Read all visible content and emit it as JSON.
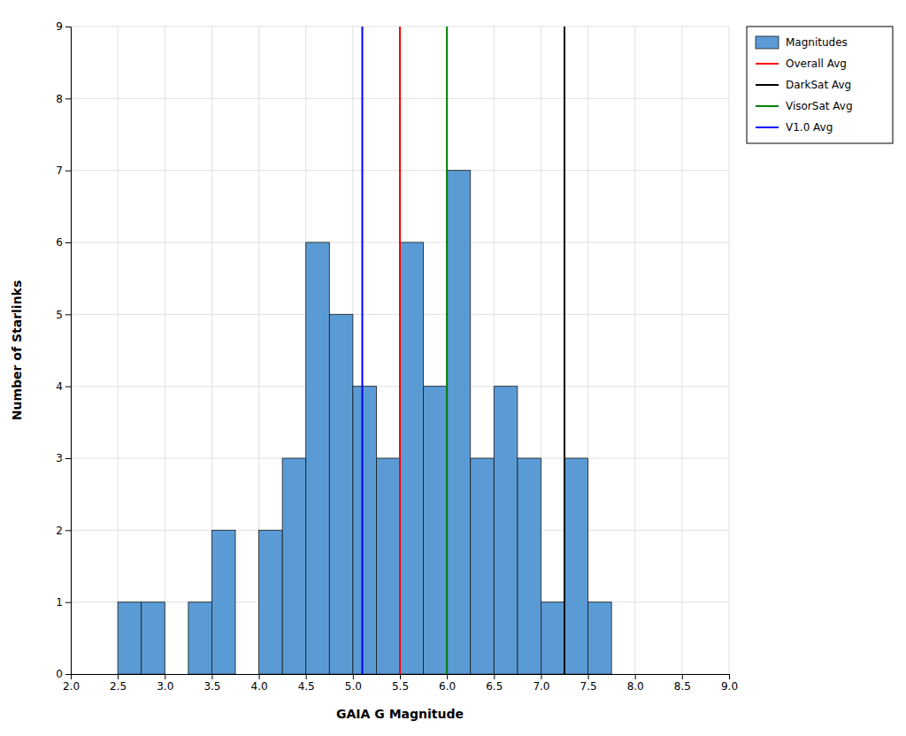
{
  "chart_data": {
    "type": "histogram",
    "xlabel": "GAIA G Magnitude",
    "ylabel": "Number of Starlinks",
    "xlim": [
      2.0,
      9.0
    ],
    "ylim": [
      0,
      9
    ],
    "xticks": [
      {
        "value": 2.0,
        "label": "2.0"
      },
      2.5,
      {
        "value": 3.0,
        "label": "3.0"
      },
      3.5,
      {
        "value": 4.0,
        "label": "4.0"
      },
      4.5,
      {
        "value": 5.0,
        "label": "5.0"
      },
      5.5,
      {
        "value": 6.0,
        "label": "6.0"
      },
      6.5,
      {
        "value": 7.0,
        "label": "7.0"
      },
      7.5,
      {
        "value": 8.0,
        "label": "8.0"
      },
      8.5,
      {
        "value": 9.0,
        "label": "9.0"
      }
    ],
    "yticks": [
      0,
      1,
      2,
      3,
      4,
      5,
      6,
      7,
      8,
      9
    ],
    "grid": true,
    "legend": "upper right",
    "series": [
      {
        "name": "Magnitudes",
        "type": "bar",
        "color": "#5b9bd5",
        "bins": [
          2.0,
          2.25,
          2.5,
          2.75,
          3.0,
          3.25,
          3.5,
          3.75,
          4.0,
          4.25,
          4.5,
          4.75,
          5.0,
          5.25,
          5.5,
          5.75,
          6.0,
          6.25,
          6.5,
          6.75,
          7.0,
          7.25,
          7.5,
          7.75,
          8.0
        ],
        "values": [
          0,
          0,
          1,
          1,
          0,
          1,
          2,
          0,
          2,
          3,
          6,
          5,
          4,
          3,
          6,
          4,
          7,
          3,
          4,
          3,
          1,
          3,
          1,
          0
        ]
      },
      {
        "name": "Overall Avg",
        "type": "vline",
        "color": "red",
        "x": 5.5
      },
      {
        "name": "DarkSat Avg",
        "type": "vline",
        "color": "black",
        "x": 7.25
      },
      {
        "name": "VisorSat Avg",
        "type": "vline",
        "color": "green",
        "x": 6.0
      },
      {
        "name": "V1.0 Avg",
        "type": "vline",
        "color": "blue",
        "x": 5.1
      }
    ]
  }
}
